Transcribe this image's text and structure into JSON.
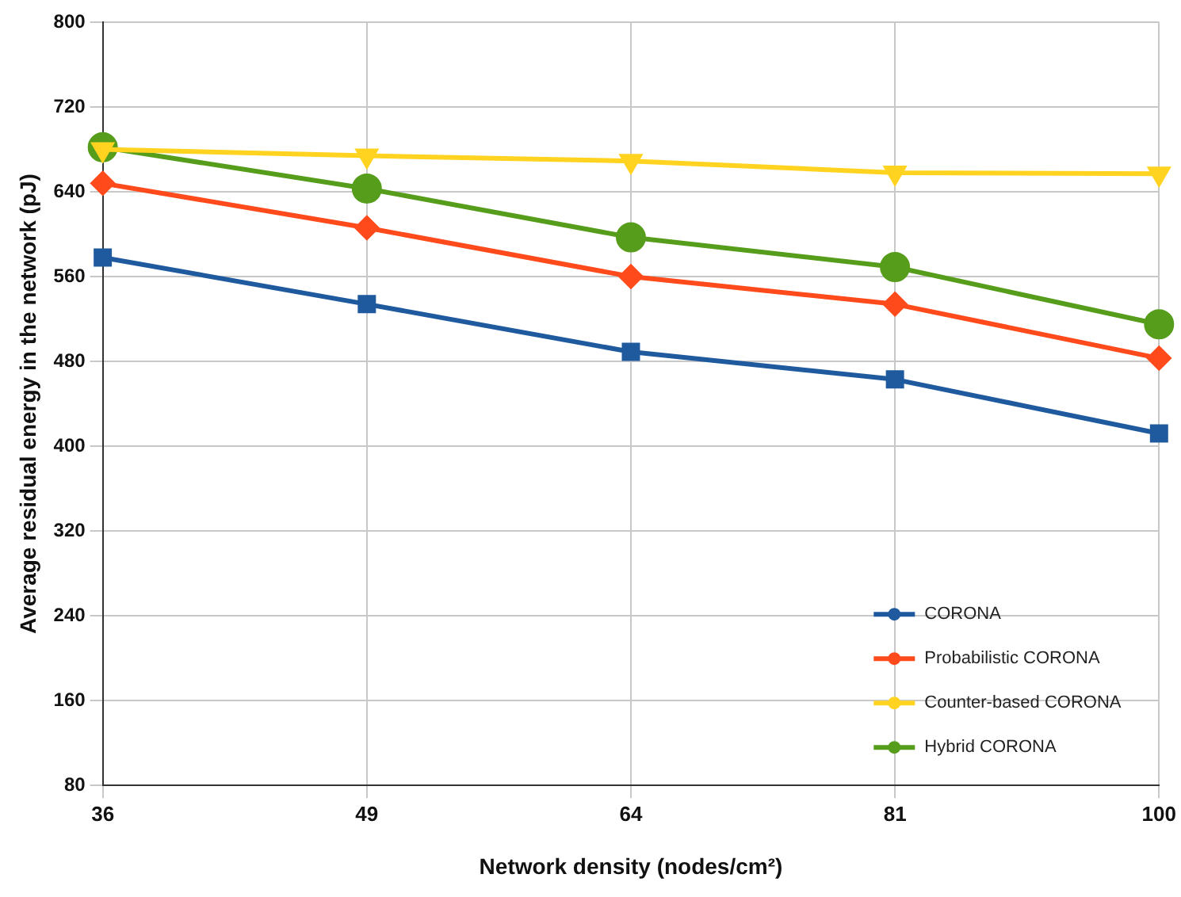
{
  "chart_data": {
    "type": "line",
    "xlabel": "Network density (nodes/cm²)",
    "ylabel": "Average residual energy in the network (pJ)",
    "categories": [
      "36",
      "49",
      "64",
      "81",
      "100"
    ],
    "ylim": [
      80,
      800
    ],
    "yticks": [
      80,
      160,
      240,
      320,
      400,
      480,
      560,
      640,
      720,
      800
    ],
    "grid": true,
    "legend": "bottom right",
    "line_style": "solid",
    "series": [
      {
        "name": "CORONA",
        "color": "#1f5a9e",
        "marker": "square",
        "values": [
          578,
          534,
          489,
          463,
          412
        ]
      },
      {
        "name": "Probabilistic CORONA",
        "color": "#ff4a1c",
        "marker": "diamond",
        "values": [
          648,
          606,
          560,
          534,
          483
        ]
      },
      {
        "name": "Counter-based CORONA",
        "color": "#ffd320",
        "marker": "triangle",
        "values": [
          680,
          674,
          669,
          658,
          657
        ]
      },
      {
        "name": "Hybrid CORONA",
        "color": "#579d1c",
        "marker": "circle",
        "values": [
          682,
          643,
          597,
          569,
          515
        ]
      }
    ]
  }
}
